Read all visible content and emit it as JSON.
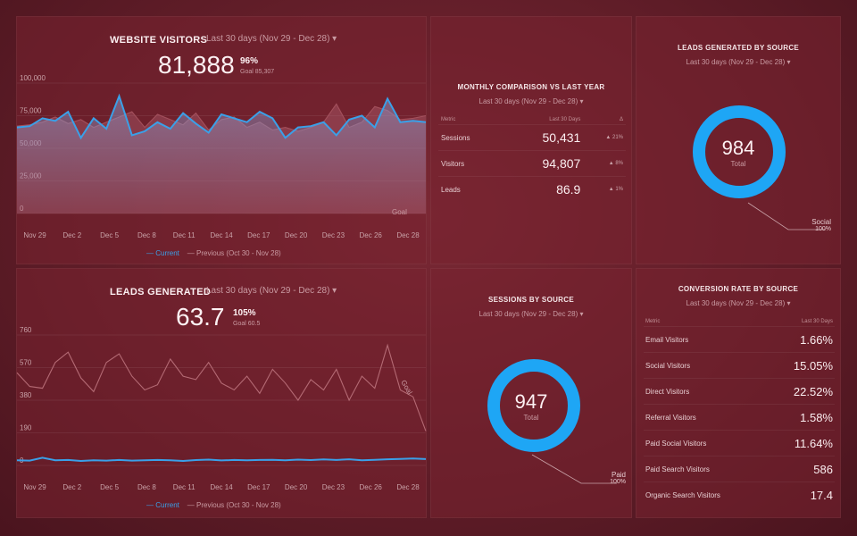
{
  "website_visitors": {
    "title": "WEBSITE VISITORS",
    "period": "Last 30 days (Nov 29 - Dec 28) ▾",
    "value": "81,888",
    "percent": "96%",
    "goal": "Goal 85,307",
    "goal_label": "Goal",
    "legend_current": "— Current",
    "legend_previous": "— Previous (Oct 30 - Nov 28)"
  },
  "monthly": {
    "title": "MONTHLY COMPARISON VS LAST YEAR",
    "period": "Last 30 days (Nov 29 - Dec 28) ▾",
    "headers": [
      "Metric",
      "Last 30 Days",
      "Δ"
    ],
    "rows": [
      {
        "metric": "Sessions",
        "value": "50,431",
        "delta": "▲ 21%"
      },
      {
        "metric": "Visitors",
        "value": "94,807",
        "delta": "▲ 8%"
      },
      {
        "metric": "Leads",
        "value": "86.9",
        "delta": "▲ 1%"
      }
    ]
  },
  "leads_source": {
    "title": "LEADS GENERATED BY SOURCE",
    "period": "Last 30 days (Nov 29 - Dec 28) ▾",
    "total": "984",
    "total_label": "Total",
    "callout_name": "Social",
    "callout_pct": "100%",
    "color": "#1ea6f5"
  },
  "leads_generated": {
    "title": "LEADS GENERATED",
    "period": "Last 30 days (Nov 29 - Dec 28) ▾",
    "value": "63.7",
    "percent": "105%",
    "goal": "Goal 60.5",
    "goal_label": "Goal",
    "legend_current": "— Current",
    "legend_previous": "— Previous (Oct 30 - Nov 28)"
  },
  "sessions_source": {
    "title": "SESSIONS BY SOURCE",
    "period": "Last 30 days (Nov 29 - Dec 28) ▾",
    "total": "947",
    "total_label": "Total",
    "callout_name": "Paid",
    "callout_pct": "100%",
    "color": "#1ea6f5"
  },
  "conversion": {
    "title": "CONVERSION RATE BY SOURCE",
    "period": "Last 30 days (Nov 29 - Dec 28) ▾",
    "headers": [
      "Metric",
      "Last 30 Days"
    ],
    "rows": [
      {
        "metric": "Email Visitors",
        "value": "1.66%"
      },
      {
        "metric": "Social Visitors",
        "value": "15.05%"
      },
      {
        "metric": "Direct Visitors",
        "value": "22.52%"
      },
      {
        "metric": "Referral Visitors",
        "value": "1.58%"
      },
      {
        "metric": "Paid Social Visitors",
        "value": "11.64%"
      },
      {
        "metric": "Paid Search Visitors",
        "value": "586"
      },
      {
        "metric": "Organic Search Visitors",
        "value": "17.4"
      }
    ]
  },
  "chart_data": [
    {
      "type": "line",
      "title": "WEBSITE VISITORS",
      "ylim": [
        0,
        100000
      ],
      "yticks": [
        "100,000",
        "75,000",
        "50,000",
        "25,000",
        "0"
      ],
      "ytick_values": [
        100000,
        75000,
        50000,
        25000,
        0
      ],
      "xticks": [
        "Nov 29",
        "Dec 2",
        "Dec 5",
        "Dec 8",
        "Dec 11",
        "Dec 14",
        "Dec 17",
        "Dec 20",
        "Dec 23",
        "Dec 26",
        "Dec 28"
      ],
      "series": [
        {
          "name": "Current",
          "color": "#3aa0e8",
          "values": [
            66000,
            67000,
            73000,
            71000,
            78000,
            58000,
            73000,
            65000,
            90000,
            60000,
            63000,
            70000,
            65000,
            77000,
            69000,
            62000,
            76000,
            73000,
            70000,
            78000,
            73000,
            58000,
            66000,
            67000,
            70000,
            60000,
            72000,
            75000,
            66000,
            88000,
            70000,
            71000,
            70000
          ]
        },
        {
          "name": "Previous",
          "color": "#a3505c",
          "values": [
            67000,
            68000,
            70000,
            74000,
            69000,
            72000,
            66000,
            70000,
            74000,
            78000,
            66000,
            76000,
            72000,
            68000,
            77000,
            64000,
            72000,
            74000,
            66000,
            70000,
            64000,
            66000,
            63000,
            66000,
            70000,
            84000,
            66000,
            70000,
            82000,
            79000,
            72000,
            73000,
            75000
          ]
        }
      ]
    },
    {
      "type": "line",
      "title": "LEADS GENERATED",
      "ylim": [
        0,
        760
      ],
      "yticks": [
        "760",
        "570",
        "380",
        "190",
        "0"
      ],
      "ytick_values": [
        760,
        570,
        380,
        190,
        0
      ],
      "xticks": [
        "Nov 29",
        "Dec 2",
        "Dec 5",
        "Dec 8",
        "Dec 11",
        "Dec 14",
        "Dec 17",
        "Dec 20",
        "Dec 23",
        "Dec 26",
        "Dec 28"
      ],
      "series": [
        {
          "name": "Current",
          "color": "#3aa0e8",
          "values": [
            30,
            28,
            45,
            30,
            32,
            26,
            30,
            28,
            32,
            28,
            30,
            32,
            30,
            26,
            31,
            34,
            29,
            32,
            30,
            32,
            33,
            30,
            34,
            31,
            35,
            32,
            36,
            30,
            33,
            36,
            38,
            40,
            37
          ]
        },
        {
          "name": "Previous",
          "color": "#b46a74",
          "values": [
            540,
            460,
            450,
            600,
            660,
            510,
            430,
            600,
            650,
            520,
            440,
            470,
            620,
            520,
            500,
            600,
            480,
            440,
            520,
            420,
            560,
            480,
            380,
            500,
            440,
            560,
            380,
            520,
            450,
            700,
            440,
            400,
            200
          ]
        }
      ]
    }
  ]
}
